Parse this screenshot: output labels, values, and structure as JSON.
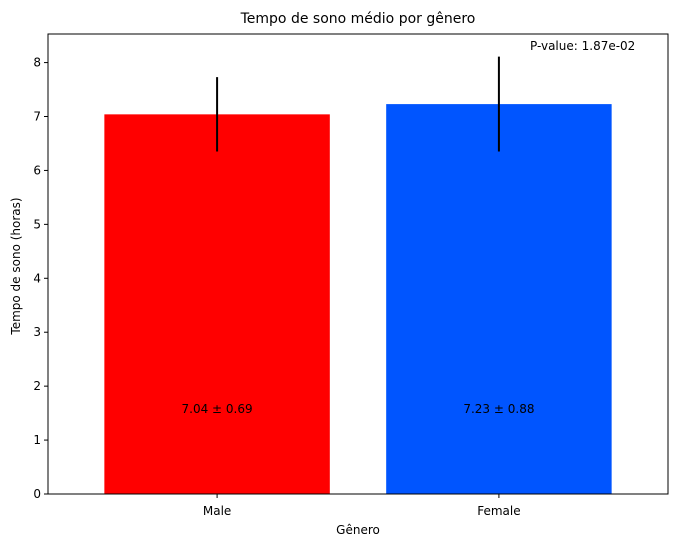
{
  "chart_data": {
    "type": "bar",
    "title": "Tempo de sono médio por gênero",
    "xlabel": "Gênero",
    "ylabel": "Tempo de sono (horas)",
    "ylim": [
      0,
      8.53
    ],
    "yticks": [
      0,
      1,
      2,
      3,
      4,
      5,
      6,
      7,
      8
    ],
    "categories": [
      "Male",
      "Female"
    ],
    "values": [
      7.04,
      7.23
    ],
    "errors": [
      0.69,
      0.88
    ],
    "bar_labels": [
      "7.04 ± 0.69",
      "7.23 ± 0.88"
    ],
    "colors": [
      "#ff0000",
      "#0055ff"
    ],
    "annotation": "P-value: 1.87e-02",
    "grid": false,
    "legend": "none"
  }
}
